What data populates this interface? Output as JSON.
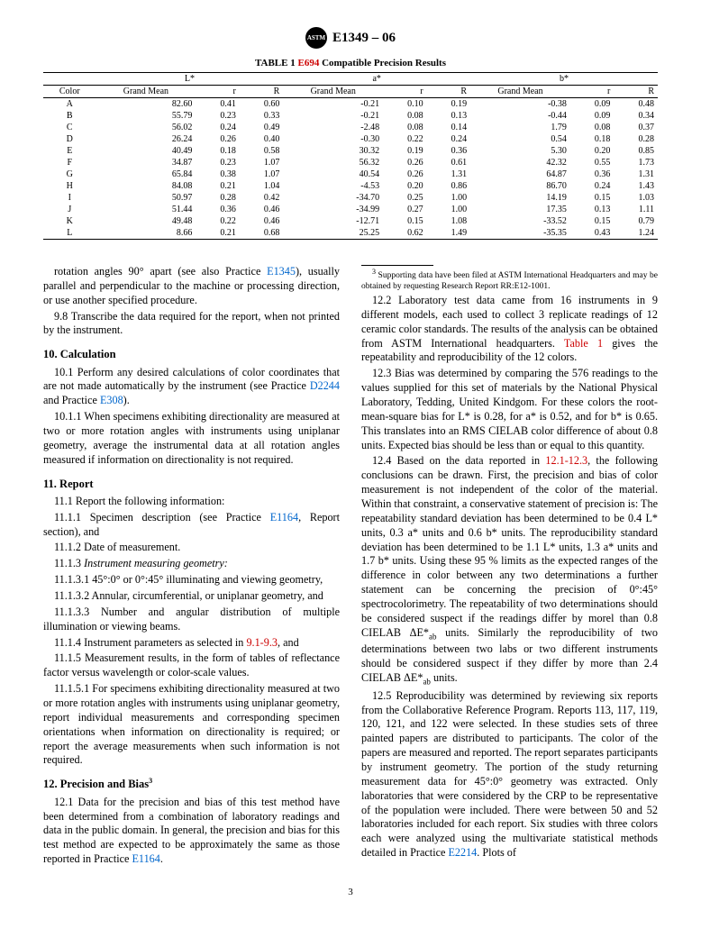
{
  "header": {
    "designation": "E1349 – 06",
    "logo_text": "ASTM"
  },
  "table": {
    "caption_prefix": "TABLE 1 ",
    "caption_ref": "E694",
    "caption_suffix": " Compatible Precision Results",
    "group_headers": [
      "L*",
      "a*",
      "b*"
    ],
    "sub_headers": [
      "Color",
      "Grand Mean",
      "r",
      "R",
      "Grand Mean",
      "r",
      "R",
      "Grand Mean",
      "r",
      "R"
    ],
    "rows": [
      [
        "A",
        "82.60",
        "0.41",
        "0.60",
        "-0.21",
        "0.10",
        "0.19",
        "-0.38",
        "0.09",
        "0.48"
      ],
      [
        "B",
        "55.79",
        "0.23",
        "0.33",
        "-0.21",
        "0.08",
        "0.13",
        "-0.44",
        "0.09",
        "0.34"
      ],
      [
        "C",
        "56.02",
        "0.24",
        "0.49",
        "-2.48",
        "0.08",
        "0.14",
        "1.79",
        "0.08",
        "0.37"
      ],
      [
        "D",
        "26.24",
        "0.26",
        "0.40",
        "-0.30",
        "0.22",
        "0.24",
        "0.54",
        "0.18",
        "0.28"
      ],
      [
        "E",
        "40.49",
        "0.18",
        "0.58",
        "30.32",
        "0.19",
        "0.36",
        "5.30",
        "0.20",
        "0.85"
      ],
      [
        "F",
        "34.87",
        "0.23",
        "1.07",
        "56.32",
        "0.26",
        "0.61",
        "42.32",
        "0.55",
        "1.73"
      ],
      [
        "G",
        "65.84",
        "0.38",
        "1.07",
        "40.54",
        "0.26",
        "1.31",
        "64.87",
        "0.36",
        "1.31"
      ],
      [
        "H",
        "84.08",
        "0.21",
        "1.04",
        "-4.53",
        "0.20",
        "0.86",
        "86.70",
        "0.24",
        "1.43"
      ],
      [
        "I",
        "50.97",
        "0.28",
        "0.42",
        "-34.70",
        "0.25",
        "1.00",
        "14.19",
        "0.15",
        "1.03"
      ],
      [
        "J",
        "51.44",
        "0.36",
        "0.46",
        "-34.99",
        "0.27",
        "1.00",
        "17.35",
        "0.13",
        "1.11"
      ],
      [
        "K",
        "49.48",
        "0.22",
        "0.46",
        "-12.71",
        "0.15",
        "1.08",
        "-33.52",
        "0.15",
        "0.79"
      ],
      [
        "L",
        "8.66",
        "0.21",
        "0.68",
        "25.25",
        "0.62",
        "1.49",
        "-35.35",
        "0.43",
        "1.24"
      ]
    ]
  },
  "body": {
    "p_rotation": "rotation angles 90° apart (see also Practice ",
    "p_rotation_ref": "E1345",
    "p_rotation2": "), usually parallel and perpendicular to the machine or processing direction, or use another specified procedure.",
    "p_98": "9.8 Transcribe the data required for the report, when not printed by the instrument.",
    "h10": "10. Calculation",
    "p_101a": "10.1 Perform any desired calculations of color coordinates that are not made automatically by the instrument (see Practice ",
    "p_101_ref1": "D2244",
    "p_101b": " and Practice ",
    "p_101_ref2": "E308",
    "p_101c": ").",
    "p_1011": "10.1.1 When specimens exhibiting directionality are measured at two or more rotation angles with instruments using uniplanar geometry, average the instrumental data at all rotation angles measured if information on directionality is not required.",
    "h11": "11. Report",
    "p_111": "11.1 Report the following information:",
    "p_1111a": "11.1.1 Specimen description (see Practice ",
    "p_1111_ref": "E1164",
    "p_1111b": ", Report section), and",
    "p_1112": "11.1.2 Date of measurement.",
    "p_1113": "11.1.3 ",
    "p_1113_it": "Instrument measuring geometry:",
    "p_11131": "11.1.3.1 45°:0° or 0°:45° illuminating and viewing geometry,",
    "p_11132": "11.1.3.2 Annular, circumferential, or uniplanar geometry, and",
    "p_11133": "11.1.3.3 Number and angular distribution of multiple illumination or viewing beams.",
    "p_1114a": "11.1.4 Instrument parameters as selected in ",
    "p_1114_ref": "9.1-9.3",
    "p_1114b": ", and",
    "p_1115": "11.1.5 Measurement results, in the form of tables of reflectance factor versus wavelength or color-scale values.",
    "p_11151": "11.1.5.1 For specimens exhibiting directionality measured at two or more rotation angles with instruments using uniplanar geometry, report individual measurements and corresponding specimen orientations when information on directionality is required; or report the average measurements when such information is not required.",
    "h12": "12. Precision and Bias",
    "h12_sup": "3",
    "p_121a": "12.1 Data for the precision and bias of this test method have been determined from a combination of laboratory readings and data in the public domain. In general, the precision and bias for this test method are expected to be approximately the same as those reported in Practice ",
    "p_121_ref": "E1164",
    "p_121b": ".",
    "p_122a": "12.2 Laboratory test data came from 16 instruments in 9 different models, each used to collect 3 replicate readings of 12 ceramic color standards. The results of the analysis can be obtained from ASTM International headquarters. ",
    "p_122_ref": "Table 1",
    "p_122b": " gives the repeatability and reproducibility of the 12 colors.",
    "p_123": "12.3 Bias was determined by comparing the 576 readings to the values supplied for this set of materials by the National Physical Laboratory, Tedding, United Kindgom. For these colors the root-mean-square bias for L* is 0.28, for a* is 0.52, and for b* is 0.65. This translates into an RMS CIELAB color difference of about 0.8 units. Expected bias should be less than or equal to this quantity.",
    "p_124a": "12.4 Based on the data reported in ",
    "p_124_ref": "12.1-12.3",
    "p_124b": ", the following conclusions can be drawn. First, the precision and bias of color measurement is not independent of the color of the material. Within that constraint, a conservative statement of precision is: The repeatability standard deviation has been determined to be 0.4 L* units, 0.3 a* units and 0.6 b* units. The reproducibility standard deviation has been determined to be 1.1 L* units, 1.3 a* units and 1.7 b* units. Using these 95 % limits as the expected ranges of the difference in color between any two determinations a further statement can be concerning the precision of 0°:45° spectrocolorimetry. The repeatability of two determinations should be considered suspect if the readings differ by morel than 0.8 CIELAB ΔE*",
    "p_124_sub1": "ab",
    "p_124c": " units. Similarly the reproducibility of two determinations between two labs or two different instruments should be considered suspect if they differ by more than 2.4 CIELAB ΔE*",
    "p_124_sub2": "ab",
    "p_124d": " units.",
    "p_125a": "12.5 Reproducibility was determined by reviewing six reports from the Collaborative Reference Program. Reports 113, 117, 119, 120, 121, and 122 were selected. In these studies sets of three painted papers are distributed to participants. The color of the papers are measured and reported. The report separates participants by instrument geometry. The portion of the study returning measurement data for 45°:0° geometry was extracted. Only laboratories that were considered by the CRP to be representative of the population were included. There were between 50 and 52 laboratories included for each report. Six studies with three colors each were analyzed using the multivariate statistical methods detailed in Practice ",
    "p_125_ref": "E2214",
    "p_125b": ". Plots of"
  },
  "footnote": {
    "sup": "3",
    "text": " Supporting data have been filed at ASTM International Headquarters and may be obtained by requesting Research Report RR:E12-1001."
  },
  "pagenum": "3"
}
